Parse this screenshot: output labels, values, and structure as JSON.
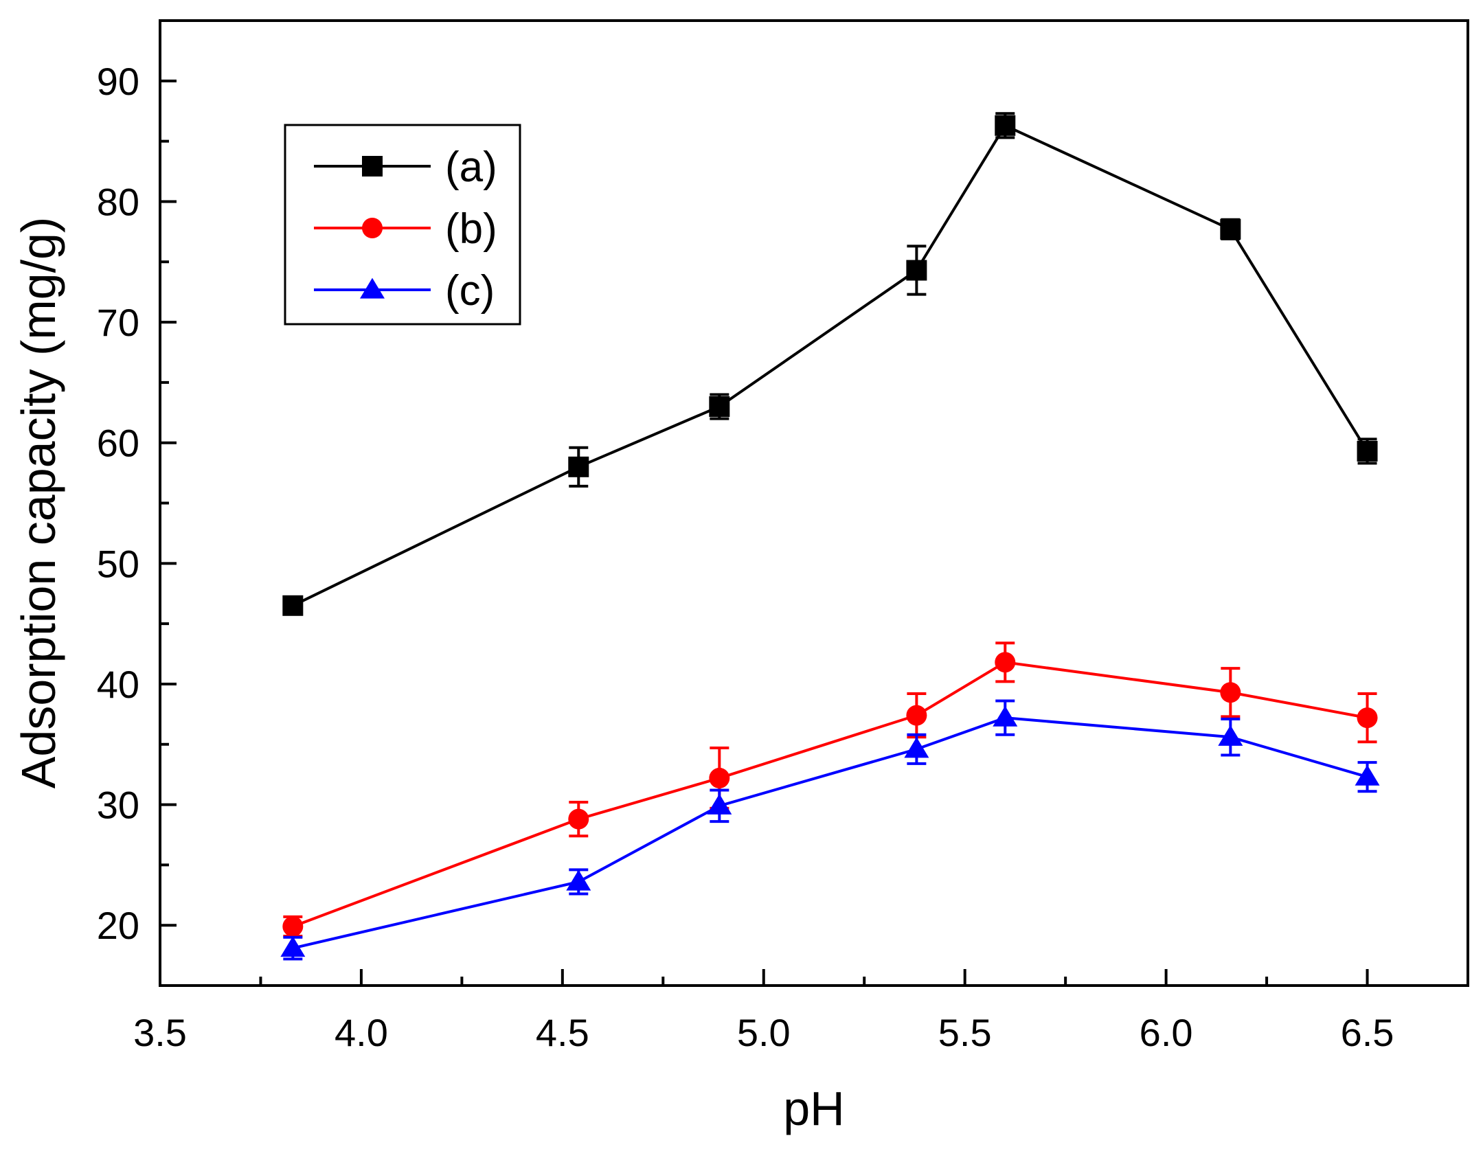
{
  "chart_data": {
    "type": "line",
    "title": "",
    "xlabel": "pH",
    "ylabel": "Adsorption capacity (mg/g)",
    "xlim": [
      3.5,
      6.75
    ],
    "ylim": [
      15,
      95
    ],
    "x_ticks": [
      "3.5",
      "4.0",
      "4.5",
      "5.0",
      "5.5",
      "6.0",
      "6.5"
    ],
    "y_ticks": [
      "20",
      "30",
      "40",
      "50",
      "60",
      "70",
      "80",
      "90"
    ],
    "grid": false,
    "legend_position": "top-left",
    "series": [
      {
        "name": "(a)",
        "color": "#000000",
        "marker": "square",
        "x": [
          3.83,
          4.54,
          4.89,
          5.38,
          5.6,
          6.16,
          6.5
        ],
        "y": [
          46.5,
          58.0,
          63.0,
          74.3,
          86.3,
          77.7,
          59.3
        ],
        "error": [
          0.5,
          1.6,
          1.0,
          2.0,
          1.0,
          0.8,
          1.0
        ]
      },
      {
        "name": "(b)",
        "color": "#ff0000",
        "marker": "circle",
        "x": [
          3.83,
          4.54,
          4.89,
          5.38,
          5.6,
          6.16,
          6.5
        ],
        "y": [
          19.9,
          28.8,
          32.2,
          37.4,
          41.8,
          39.3,
          37.2
        ],
        "error": [
          0.8,
          1.4,
          2.5,
          1.8,
          1.6,
          2.0,
          2.0
        ]
      },
      {
        "name": "(c)",
        "color": "#0000ff",
        "marker": "triangle",
        "x": [
          3.83,
          4.54,
          4.89,
          5.38,
          5.6,
          6.16,
          6.5
        ],
        "y": [
          18.1,
          23.6,
          29.9,
          34.6,
          37.2,
          35.6,
          32.3
        ],
        "error": [
          0.9,
          1.0,
          1.3,
          1.2,
          1.4,
          1.5,
          1.2
        ]
      }
    ]
  }
}
